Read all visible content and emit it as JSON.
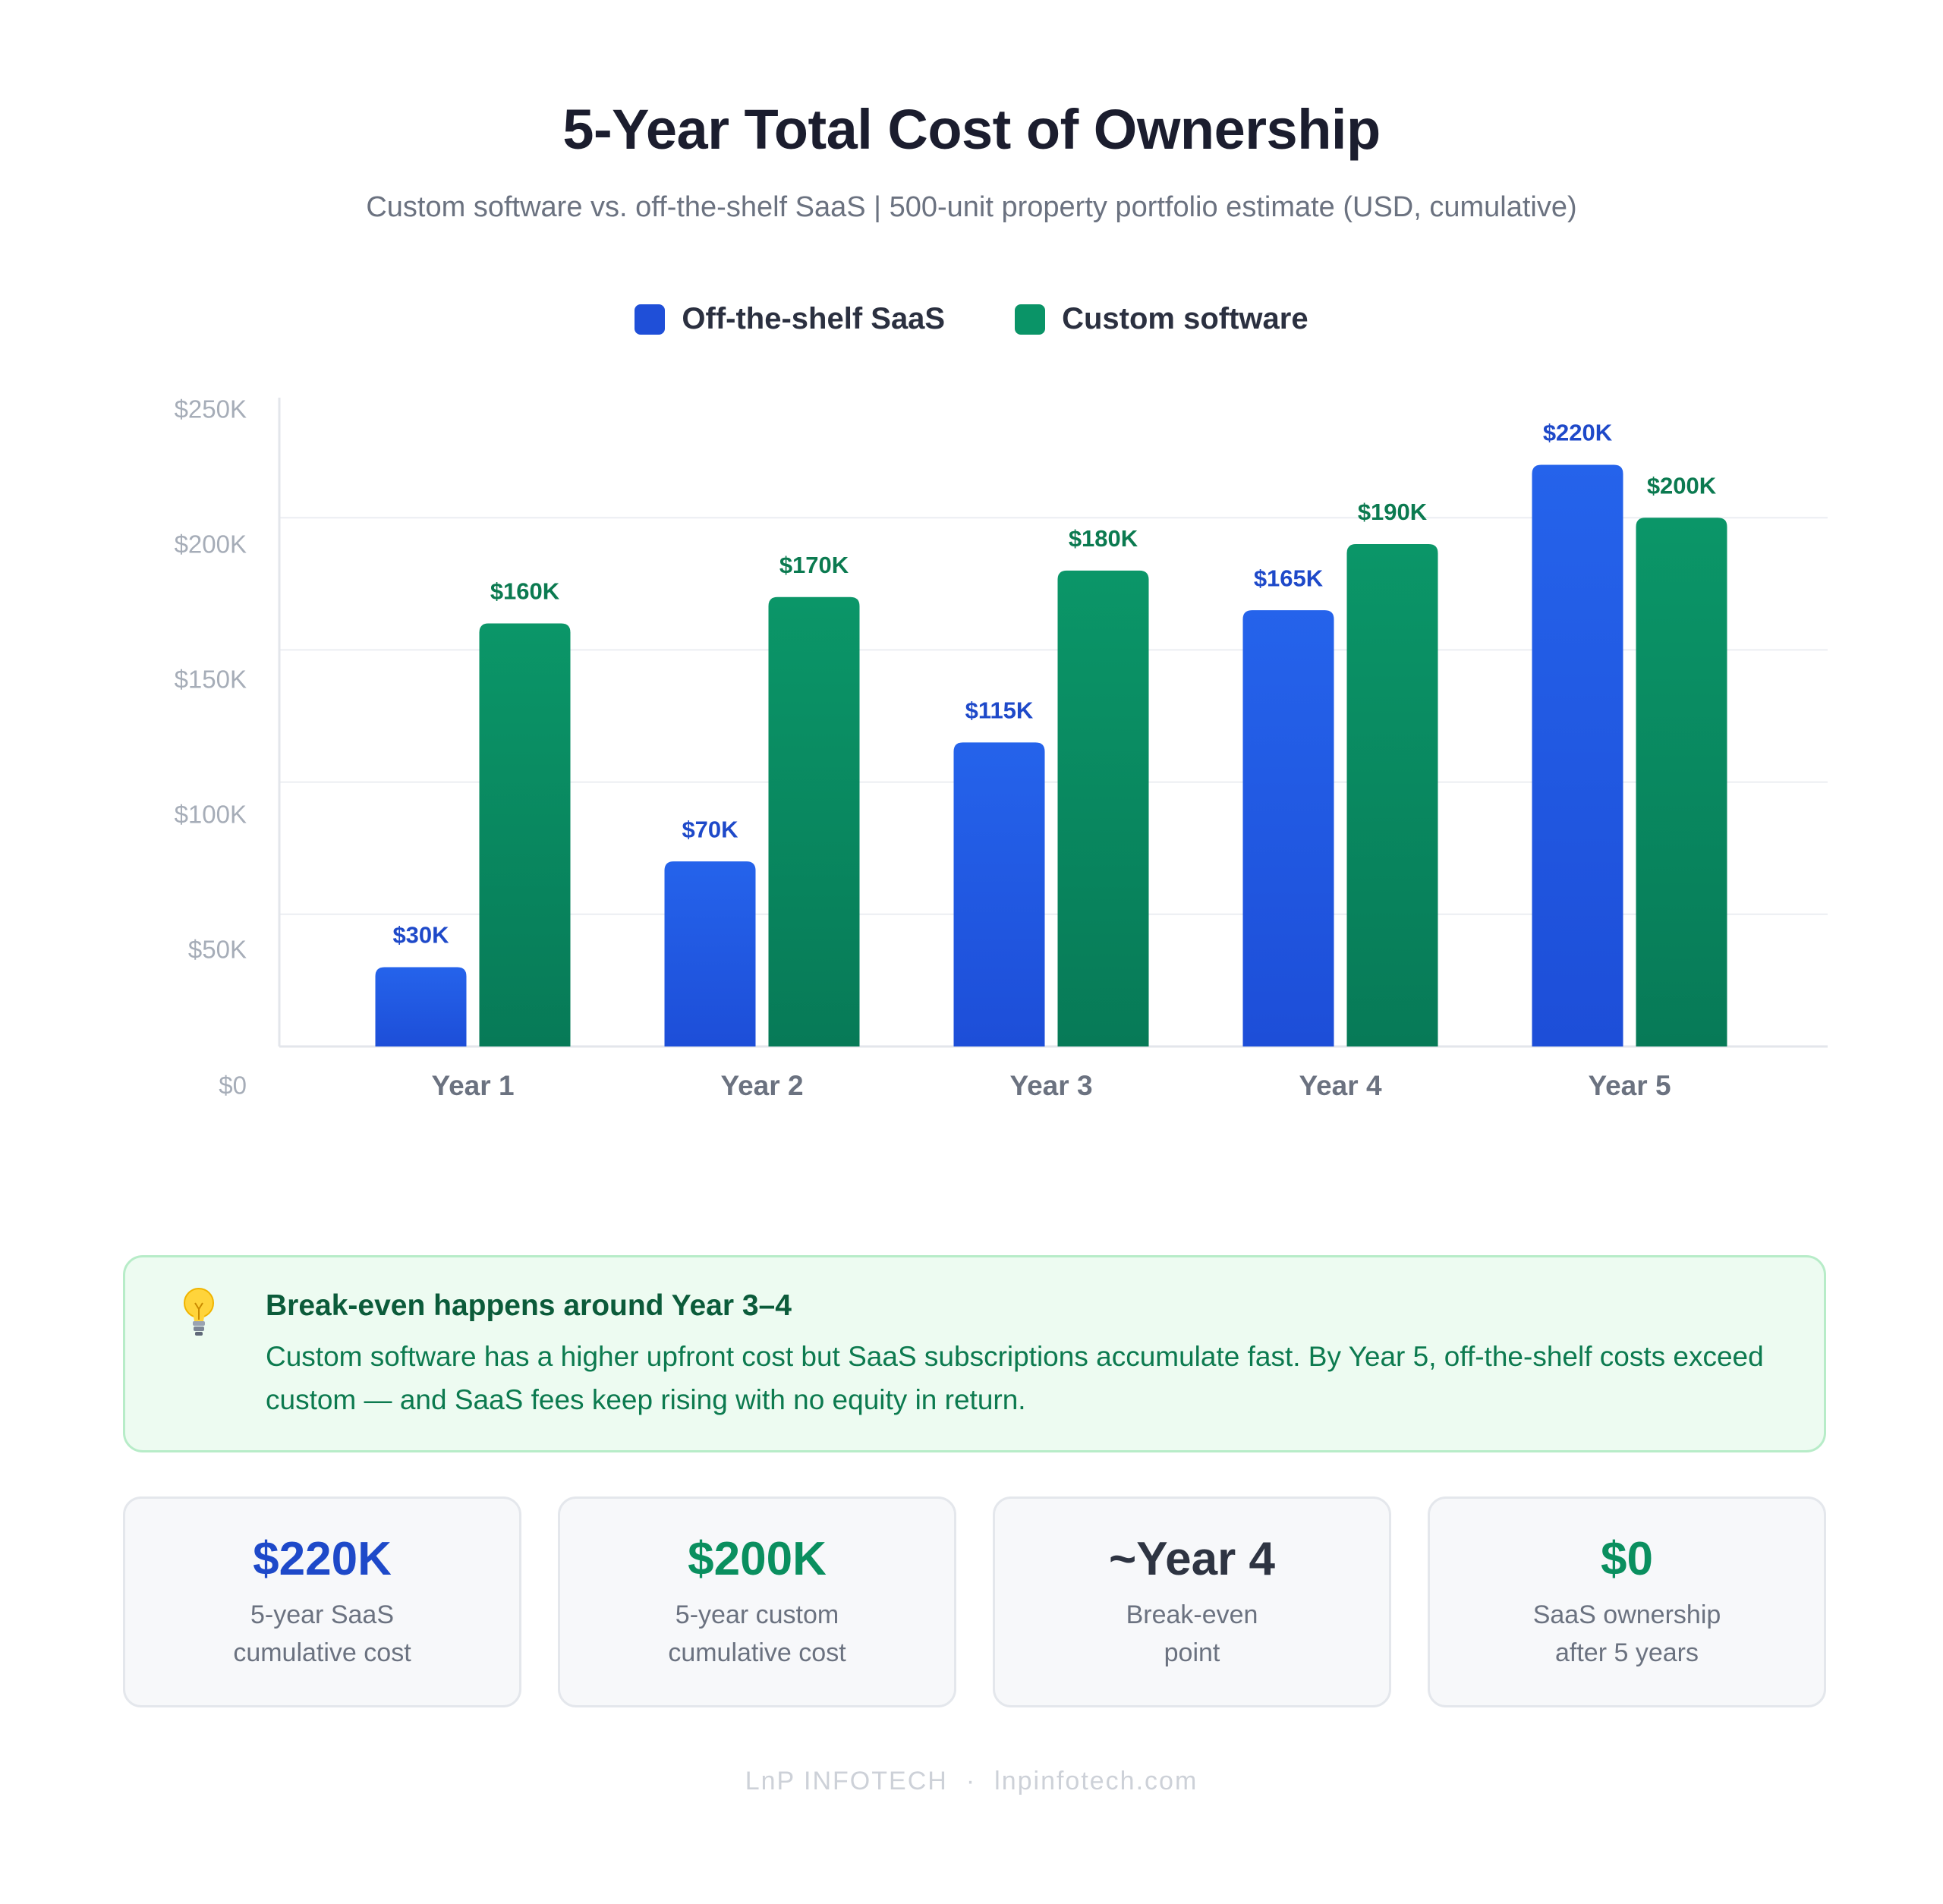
{
  "header": {
    "title": "5-Year Total Cost of Ownership",
    "subtitle": "Custom software vs. off-the-shelf SaaS  |  500-unit property portfolio estimate (USD, cumulative)"
  },
  "legend": [
    {
      "label": "Off-the-shelf SaaS",
      "color": "#1f4fd8"
    },
    {
      "label": "Custom software",
      "color": "#0a9467"
    }
  ],
  "chart_data": {
    "type": "bar",
    "categories": [
      "Year 1",
      "Year 2",
      "Year 3",
      "Year 4",
      "Year 5"
    ],
    "series": [
      {
        "name": "Off-the-shelf SaaS",
        "values": [
          30,
          70,
          115,
          165,
          220
        ],
        "labels": [
          "$30K",
          "$70K",
          "$115K",
          "$165K",
          "$220K"
        ],
        "color_top": "#2563eb",
        "color_bottom": "#1d4ed8",
        "label_color": "#1e49c9"
      },
      {
        "name": "Custom software",
        "values": [
          160,
          170,
          180,
          190,
          200
        ],
        "labels": [
          "$160K",
          "$170K",
          "$180K",
          "$190K",
          "$200K"
        ],
        "color_top": "#0b9668",
        "color_bottom": "#077a57",
        "label_color": "#0b7a50"
      }
    ],
    "unit": "thousand USD",
    "ylim": [
      0,
      250
    ],
    "yticks": [
      0,
      50,
      100,
      150,
      200,
      250
    ],
    "ytick_labels": [
      "$0",
      "$50K",
      "$100K",
      "$150K",
      "$200K",
      "$250K"
    ],
    "grid": true,
    "legend_position": "top-center"
  },
  "callout": {
    "icon": "lightbulb-icon",
    "title": "Break-even happens around Year 3–4",
    "text": "Custom software has a higher upfront cost but SaaS subscriptions accumulate fast. By Year 5, off-the-shelf costs exceed custom — and SaaS fees keep rising with no equity in return."
  },
  "stats": [
    {
      "value": "$220K",
      "label": "5-year SaaS\ncumulative cost",
      "color": "#1e49c9"
    },
    {
      "value": "$200K",
      "label": "5-year custom\ncumulative cost",
      "color": "#0a8f5f"
    },
    {
      "value": "~Year 4",
      "label": "Break-even\npoint",
      "color": "#2e3442"
    },
    {
      "value": "$0",
      "label": "SaaS ownership\nafter 5 years",
      "color": "#0a8f5f"
    }
  ],
  "footer": {
    "brand": "LnP INFOTECH",
    "separator": "·",
    "site": "lnpinfotech.com"
  }
}
